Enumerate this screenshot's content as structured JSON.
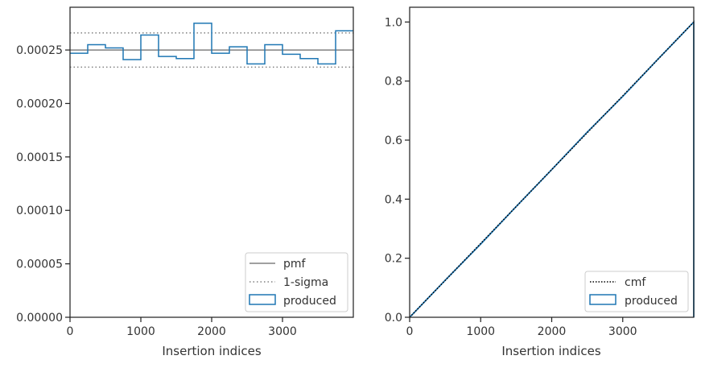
{
  "chart_data": [
    {
      "type": "line",
      "step": true,
      "xlabel": "Insertion indices",
      "ylabel": "",
      "xlim": [
        0,
        4000
      ],
      "ylim": [
        0,
        0.00029
      ],
      "xticks": [
        0,
        1000,
        2000,
        3000
      ],
      "xtick_labels": [
        "0",
        "1000",
        "2000",
        "3000"
      ],
      "yticks": [
        0,
        5e-05,
        0.0001,
        0.00015,
        0.0002,
        0.00025
      ],
      "ytick_labels": [
        "0.00000",
        "0.00005",
        "0.00010",
        "0.00015",
        "0.00020",
        "0.00025"
      ],
      "legend_position": "bottom-right",
      "series": [
        {
          "name": "pmf",
          "style": "solid",
          "color": "#808080",
          "x": [
            0,
            4000
          ],
          "y": [
            0.00025,
            0.00025
          ]
        },
        {
          "name": "1-sigma",
          "style": "dotted",
          "color": "#808080",
          "upper": 0.000266,
          "lower": 0.000234
        },
        {
          "name": "produced",
          "style": "step",
          "color": "#1f77b4",
          "bin_edges": [
            0,
            250,
            500,
            750,
            1000,
            1250,
            1500,
            1750,
            2000,
            2250,
            2500,
            2750,
            3000,
            3250,
            3500,
            3750,
            4000
          ],
          "values": [
            0.000247,
            0.000255,
            0.000252,
            0.000241,
            0.000264,
            0.000244,
            0.000242,
            0.000275,
            0.000247,
            0.000253,
            0.000237,
            0.000255,
            0.000246,
            0.000242,
            0.000237,
            0.000268
          ]
        }
      ]
    },
    {
      "type": "line",
      "xlabel": "Insertion indices",
      "ylabel": "",
      "xlim": [
        0,
        4000
      ],
      "ylim": [
        0,
        1.05
      ],
      "xticks": [
        0,
        1000,
        2000,
        3000
      ],
      "xtick_labels": [
        "0",
        "1000",
        "2000",
        "3000"
      ],
      "yticks": [
        0,
        0.2,
        0.4,
        0.6,
        0.8,
        1.0
      ],
      "ytick_labels": [
        "0.0",
        "0.2",
        "0.4",
        "0.6",
        "0.8",
        "1.0"
      ],
      "legend_position": "bottom-right",
      "series": [
        {
          "name": "cmf",
          "style": "dotted",
          "color": "#000000",
          "x": [
            0,
            4000
          ],
          "y": [
            0,
            1.0
          ]
        },
        {
          "name": "produced",
          "style": "step",
          "color": "#1f77b4",
          "x": [
            0,
            500,
            1000,
            1500,
            2000,
            2500,
            3000,
            3500,
            4000
          ],
          "y": [
            0,
            0.125,
            0.248,
            0.375,
            0.5,
            0.627,
            0.748,
            0.875,
            1.0
          ]
        }
      ]
    }
  ]
}
